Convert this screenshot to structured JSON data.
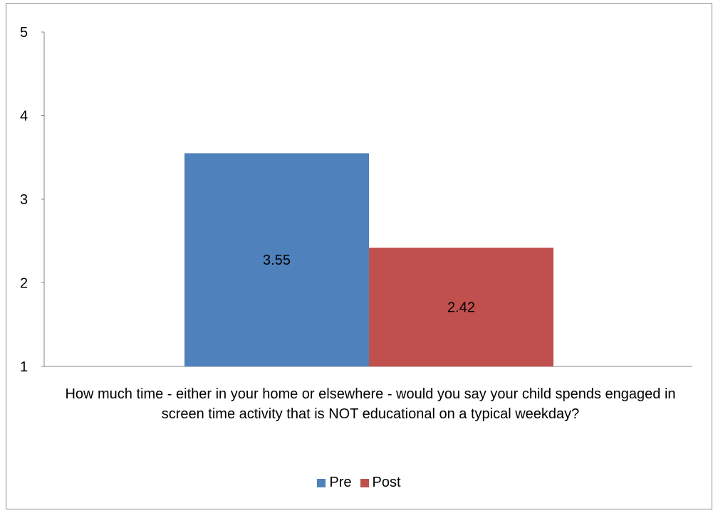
{
  "chart_data": {
    "type": "bar",
    "title": "",
    "xlabel": "",
    "ylabel": "",
    "categories": [
      "How much time - either in your home or elsewhere - would you say your child spends engaged in screen time activity that is NOT educational on a typical weekday?"
    ],
    "series": [
      {
        "name": "Pre",
        "values": [
          3.55
        ],
        "color": "#4f81bd"
      },
      {
        "name": "Post",
        "values": [
          2.42
        ],
        "color": "#c0504d"
      }
    ],
    "ylim": [
      1,
      5
    ],
    "yticks": [
      "1",
      "2",
      "3",
      "4",
      "5"
    ],
    "grid": false,
    "legend_position": "bottom"
  }
}
